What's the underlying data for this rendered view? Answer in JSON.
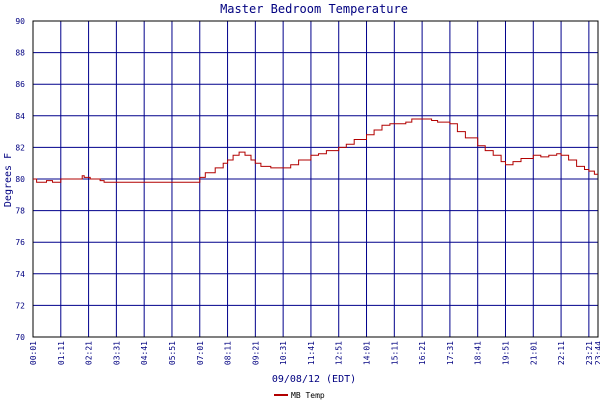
{
  "chart_data": {
    "type": "line",
    "title": "Master Bedroom Temperature",
    "xlabel": "09/08/12 (EDT)",
    "ylabel": "Degrees F",
    "ylim": [
      70,
      90
    ],
    "yticks": [
      70,
      72,
      74,
      76,
      78,
      80,
      82,
      84,
      86,
      88,
      90
    ],
    "xlim": [
      "00:01",
      "23:44"
    ],
    "xticks": [
      "00:01",
      "01:11",
      "02:21",
      "03:31",
      "04:41",
      "05:51",
      "07:01",
      "08:11",
      "09:21",
      "10:31",
      "11:41",
      "12:51",
      "14:01",
      "15:11",
      "16:21",
      "17:31",
      "18:41",
      "19:51",
      "21:01",
      "22:11",
      "23:21",
      "23:44"
    ],
    "grid": true,
    "legend": "bottom",
    "colors": {
      "plot_background": "#ffffff",
      "grid": "#00008b",
      "axis": "#000000",
      "text": "#000080",
      "series": "#b20000"
    },
    "series": [
      {
        "name": "MB Temp",
        "x": [
          "00:01",
          "00:10",
          "00:20",
          "00:35",
          "00:50",
          "01:11",
          "01:40",
          "02:05",
          "02:10",
          "02:25",
          "02:50",
          "03:00",
          "03:31",
          "04:41",
          "05:51",
          "06:50",
          "07:01",
          "07:15",
          "07:40",
          "08:00",
          "08:11",
          "08:25",
          "08:40",
          "08:55",
          "09:10",
          "09:21",
          "09:35",
          "10:00",
          "10:31",
          "10:50",
          "11:10",
          "11:41",
          "12:00",
          "12:20",
          "12:51",
          "13:10",
          "13:30",
          "14:01",
          "14:20",
          "14:40",
          "15:00",
          "15:11",
          "15:40",
          "15:55",
          "16:21",
          "16:45",
          "17:00",
          "17:31",
          "17:50",
          "18:10",
          "18:41",
          "19:00",
          "19:20",
          "19:40",
          "19:51",
          "20:10",
          "20:30",
          "21:01",
          "21:20",
          "21:40",
          "22:00",
          "22:11",
          "22:30",
          "22:50",
          "23:10",
          "23:21",
          "23:35",
          "23:44"
        ],
        "y": [
          80.0,
          79.8,
          79.8,
          79.9,
          79.8,
          80.0,
          80.0,
          80.2,
          80.1,
          80.0,
          79.9,
          79.8,
          79.8,
          79.8,
          79.8,
          79.8,
          80.1,
          80.4,
          80.7,
          81.0,
          81.2,
          81.5,
          81.7,
          81.5,
          81.2,
          81.0,
          80.8,
          80.7,
          80.7,
          80.9,
          81.2,
          81.5,
          81.6,
          81.8,
          82.0,
          82.2,
          82.5,
          82.8,
          83.1,
          83.4,
          83.5,
          83.5,
          83.6,
          83.8,
          83.8,
          83.7,
          83.6,
          83.5,
          83.0,
          82.6,
          82.1,
          81.8,
          81.5,
          81.1,
          80.9,
          81.1,
          81.3,
          81.5,
          81.4,
          81.5,
          81.6,
          81.5,
          81.2,
          80.8,
          80.6,
          80.5,
          80.3,
          80.3
        ]
      }
    ]
  }
}
